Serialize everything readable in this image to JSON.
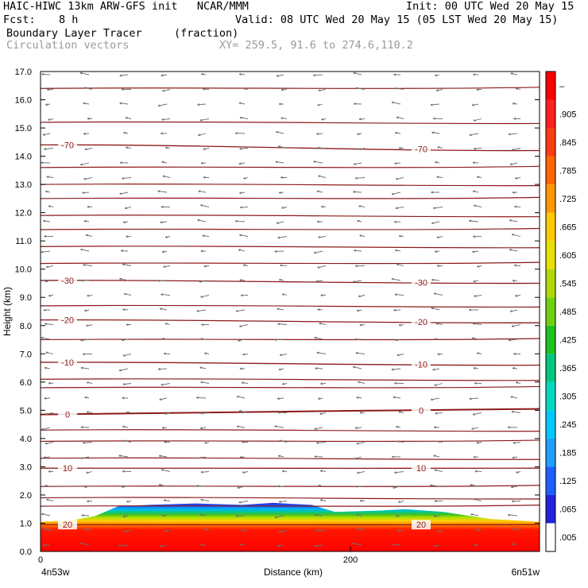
{
  "header": {
    "line1_left": "HAIC-HIWC 13km ARW-GFS init   NCAR/MMM",
    "line1_right": "Init: 00 UTC Wed 20 May 15",
    "fcst_label": "Fcst:",
    "fcst_value": "8 h",
    "valid": "Valid: 08 UTC Wed 20 May 15 (05 LST Wed 20 May 15)",
    "field_name": "Boundary Layer Tracer",
    "field_units": "(fraction)",
    "vector_label": "Circulation vectors",
    "xsec_coords": "XY= 259.5, 91.6 to 274.6,110.2"
  },
  "colors": {
    "contour": "#8b1a1a",
    "vector": "#707070",
    "text_grey": "#9a9a9a"
  },
  "chart_data": {
    "type": "heatmap",
    "ylabel": "Height (km)",
    "xlabel": "Distance (km)",
    "ylim": [
      0,
      17
    ],
    "xlim": [
      0,
      322
    ],
    "y_ticks": [
      "0.0",
      "1.0",
      "2.0",
      "3.0",
      "4.0",
      "5.0",
      "6.0",
      "7.0",
      "8.0",
      "9.0",
      "10.0",
      "11.0",
      "12.0",
      "13.0",
      "14.0",
      "15.0",
      "16.0",
      "17.0"
    ],
    "x_ticks": [
      {
        "value": 0,
        "label": "0"
      },
      {
        "value": 200,
        "label": "200"
      }
    ],
    "x_end_labels": {
      "left": "4n53w",
      "right": "6n51w"
    },
    "colorbar": {
      "labels": [
        ".005",
        ".065",
        ".125",
        ".185",
        ".245",
        ".305",
        ".365",
        ".425",
        ".485",
        ".545",
        ".605",
        ".665",
        ".725",
        ".785",
        ".845",
        ".905",
        "–"
      ],
      "colors": [
        "#ffffff",
        "#2222dd",
        "#1f5fff",
        "#1ea0ff",
        "#00c8ff",
        "#00d8c0",
        "#00c880",
        "#20c020",
        "#70d010",
        "#b0d808",
        "#e8e000",
        "#ffc800",
        "#ff9800",
        "#ff6800",
        "#ff3c14",
        "#ff2020",
        "#ff0000"
      ]
    },
    "tracer_top_km": [
      {
        "x": 0,
        "z": 1.05
      },
      {
        "x": 20,
        "z": 1.1
      },
      {
        "x": 35,
        "z": 1.25
      },
      {
        "x": 50,
        "z": 1.6
      },
      {
        "x": 70,
        "z": 1.65
      },
      {
        "x": 100,
        "z": 1.7
      },
      {
        "x": 130,
        "z": 1.65
      },
      {
        "x": 150,
        "z": 1.72
      },
      {
        "x": 175,
        "z": 1.65
      },
      {
        "x": 190,
        "z": 1.4
      },
      {
        "x": 220,
        "z": 1.45
      },
      {
        "x": 235,
        "z": 1.5
      },
      {
        "x": 260,
        "z": 1.4
      },
      {
        "x": 290,
        "z": 1.15
      },
      {
        "x": 322,
        "z": 1.05
      }
    ],
    "temperature_contours": [
      {
        "level": "-70",
        "z_left": 14.4,
        "z_right": 14.2
      },
      {
        "level": "-30",
        "z_left": 9.6,
        "z_right": 9.5
      },
      {
        "level": "-20",
        "z_left": 8.2,
        "z_right": 8.1
      },
      {
        "level": "-10",
        "z_left": 6.7,
        "z_right": 6.6
      },
      {
        "level": "0",
        "z_left": 4.85,
        "z_right": 5.05
      },
      {
        "level": "10",
        "z_left": 2.95,
        "z_right": 2.95
      },
      {
        "level": "20",
        "z_left": 0.95,
        "z_right": 0.95
      }
    ],
    "other_contours_km": [
      16.4,
      15.2,
      13.6,
      13.0,
      12.5,
      11.9,
      11.4,
      10.8,
      10.2,
      8.7,
      7.5,
      6.1,
      5.8,
      4.3,
      3.9,
      3.3,
      2.3,
      1.9,
      1.6
    ]
  }
}
